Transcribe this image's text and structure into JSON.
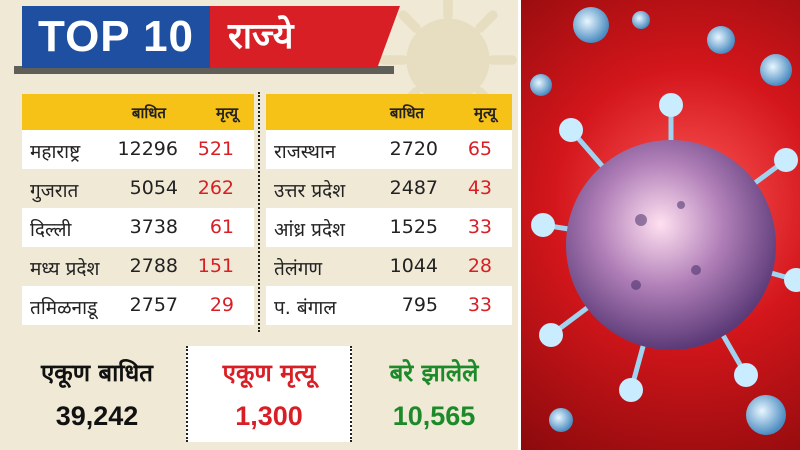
{
  "header": {
    "top_label": "TOP 10",
    "states_label": "राज्ये"
  },
  "columns": {
    "cases": "बाधित",
    "deaths": "मृत्यू"
  },
  "left_table": [
    {
      "state": "महाराष्ट्र",
      "cases": "12296",
      "deaths": "521"
    },
    {
      "state": "गुजरात",
      "cases": "5054",
      "deaths": "262"
    },
    {
      "state": "दिल्ली",
      "cases": "3738",
      "deaths": "61"
    },
    {
      "state": "मध्य प्रदेश",
      "cases": "2788",
      "deaths": "151"
    },
    {
      "state": "तमिळनाडू",
      "cases": "2757",
      "deaths": "29"
    }
  ],
  "right_table": [
    {
      "state": "राजस्थान",
      "cases": "2720",
      "deaths": "65"
    },
    {
      "state": "उत्तर प्रदेश",
      "cases": "2487",
      "deaths": "43"
    },
    {
      "state": "आंध्र प्रदेश",
      "cases": "1525",
      "deaths": "33"
    },
    {
      "state": "तेलंगण",
      "cases": "1044",
      "deaths": "28"
    },
    {
      "state": "प. बंगाल",
      "cases": "795",
      "deaths": "33"
    }
  ],
  "summary": {
    "total_cases_label": "एकूण बाधित",
    "total_cases": "39,242",
    "total_deaths_label": "एकूण मृत्यू",
    "total_deaths": "1,300",
    "recovered_label": "बरे झालेले",
    "recovered": "10,565"
  },
  "colors": {
    "blue": "#1f4fa0",
    "red": "#d81f26",
    "yellow": "#f6c218",
    "green": "#1d8a2a",
    "panel": "#efe9d6"
  }
}
